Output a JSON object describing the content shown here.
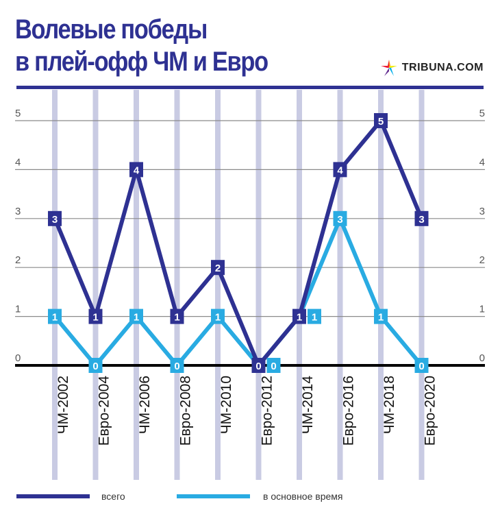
{
  "chart_data": {
    "type": "line",
    "title_lines": [
      "Волевые победы",
      "в плей-офф ЧМ и Евро"
    ],
    "categories": [
      "ЧМ-2002",
      "Евро-2004",
      "ЧМ-2006",
      "Евро-2008",
      "ЧМ-2010",
      "Евро-2012",
      "ЧМ-2014",
      "Евро-2016",
      "ЧМ-2018",
      "Евро-2020"
    ],
    "series": [
      {
        "name": "всего",
        "color": "#2e3192",
        "values": [
          3,
          1,
          4,
          1,
          2,
          0,
          1,
          4,
          5,
          3
        ]
      },
      {
        "name": "в основное время",
        "color": "#29abe2",
        "values": [
          1,
          0,
          1,
          0,
          1,
          0,
          1,
          3,
          1,
          0
        ]
      }
    ],
    "yticks": [
      "0",
      "1",
      "2",
      "3",
      "4",
      "5"
    ],
    "ylim": [
      0,
      5
    ],
    "grid": true,
    "legend_position": "bottom-left"
  },
  "brand": {
    "name": "TRIBUNA.COM",
    "logo_icon": "star-logo-icon"
  }
}
